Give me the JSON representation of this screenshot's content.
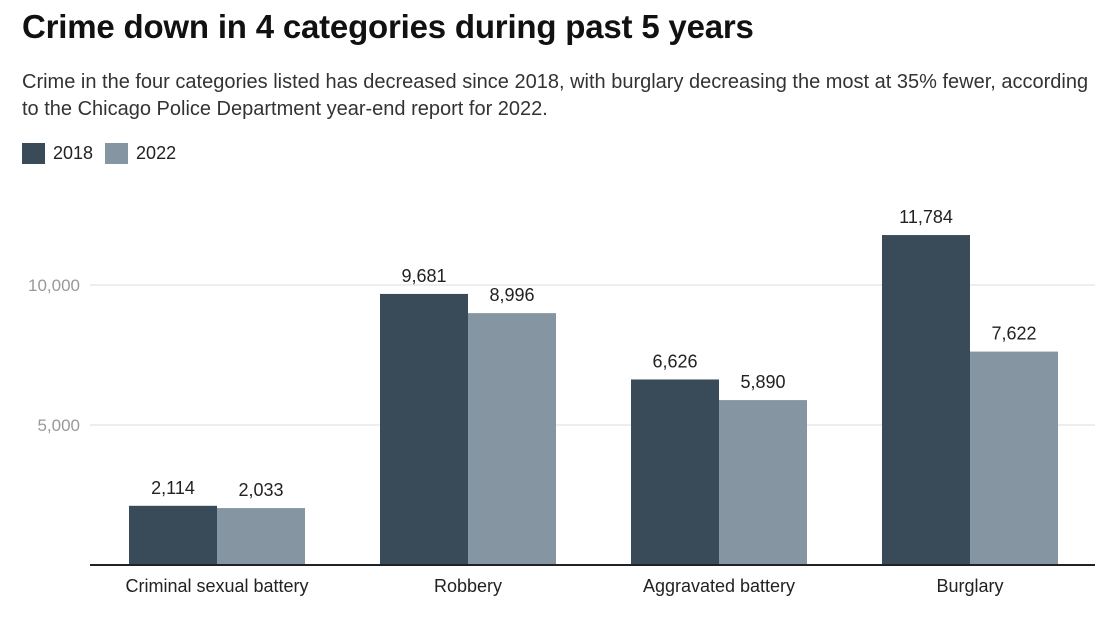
{
  "header": {
    "title": "Crime down in 4 categories during past 5 years",
    "subtitle": "Crime in the four categories listed has decreased since 2018, with burglary decreasing the most at 35% fewer, according to the Chicago Police Department year-end report for 2022."
  },
  "legend": [
    {
      "label": "2018",
      "color": "#394b58"
    },
    {
      "label": "2022",
      "color": "#8596a2"
    }
  ],
  "chart_data": {
    "type": "bar",
    "categories": [
      "Criminal sexual battery",
      "Robbery",
      "Aggravated battery",
      "Burglary"
    ],
    "series": [
      {
        "name": "2018",
        "color": "#394b58",
        "values": [
          2114,
          9681,
          6626,
          11784
        ],
        "labels": [
          "2,114",
          "9,681",
          "6,626",
          "11,784"
        ]
      },
      {
        "name": "2022",
        "color": "#8596a2",
        "values": [
          2033,
          8996,
          5890,
          7622
        ],
        "labels": [
          "2,033",
          "8,996",
          "5,890",
          "7,622"
        ]
      }
    ],
    "y_ticks": [
      5000,
      10000
    ],
    "y_tick_labels": [
      "5,000",
      "10,000"
    ],
    "ylim": [
      0,
      12500
    ],
    "grid": true,
    "legend_position": "top-left"
  }
}
